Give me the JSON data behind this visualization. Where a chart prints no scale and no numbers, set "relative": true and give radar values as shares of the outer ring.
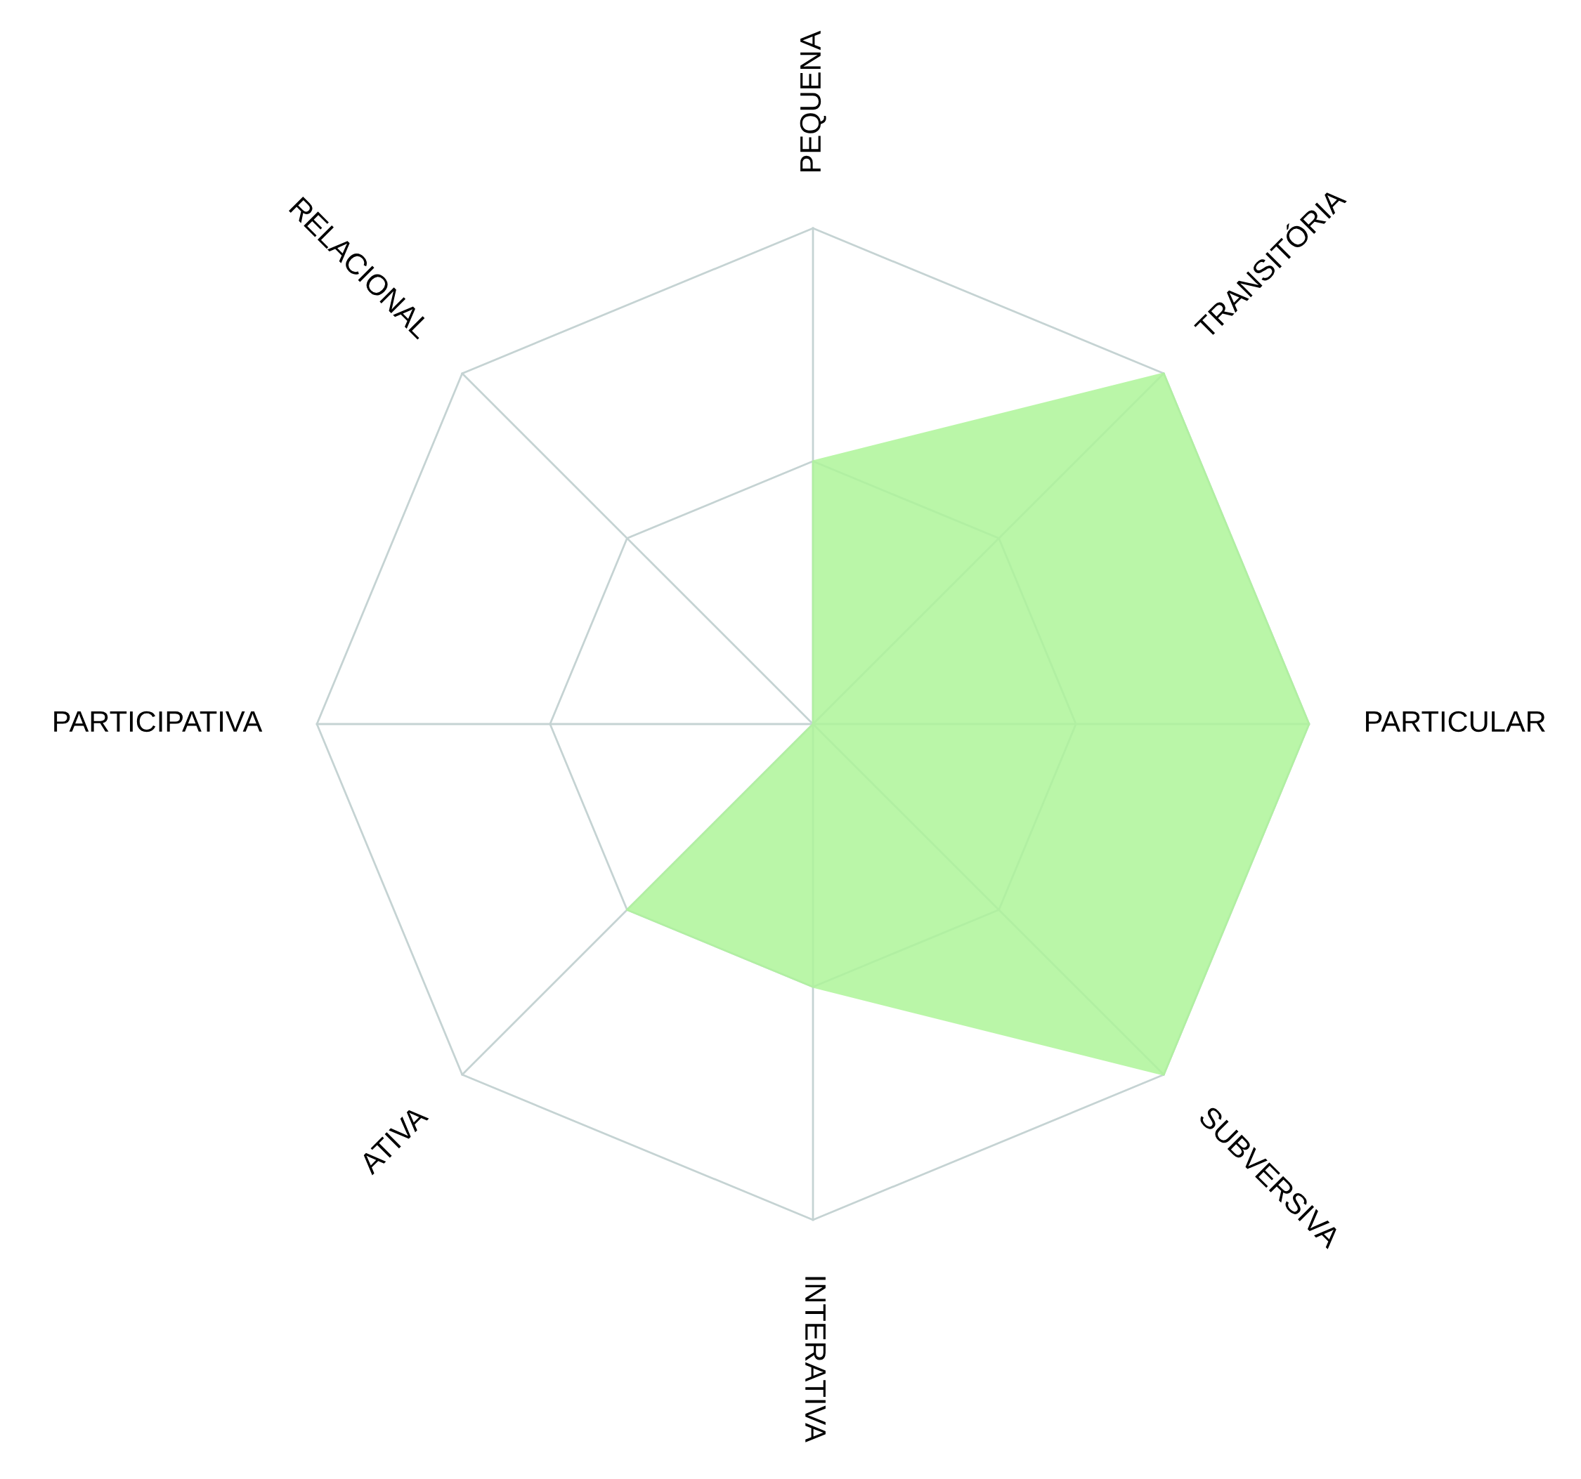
{
  "chart_data": {
    "type": "radar",
    "relative": true,
    "categories": [
      "PEQUENA",
      "TRANSITÓRIA",
      "PARTICULAR",
      "SUBVERSIVA",
      "INTERATIVA",
      "ATIVA",
      "PARTICIPATIVA",
      "RELACIONAL"
    ],
    "series": [
      {
        "color": "#aef59a",
        "values": [
          0.53,
          1,
          1,
          1,
          0.53,
          0.53,
          0,
          0
        ]
      }
    ],
    "grid": true
  }
}
